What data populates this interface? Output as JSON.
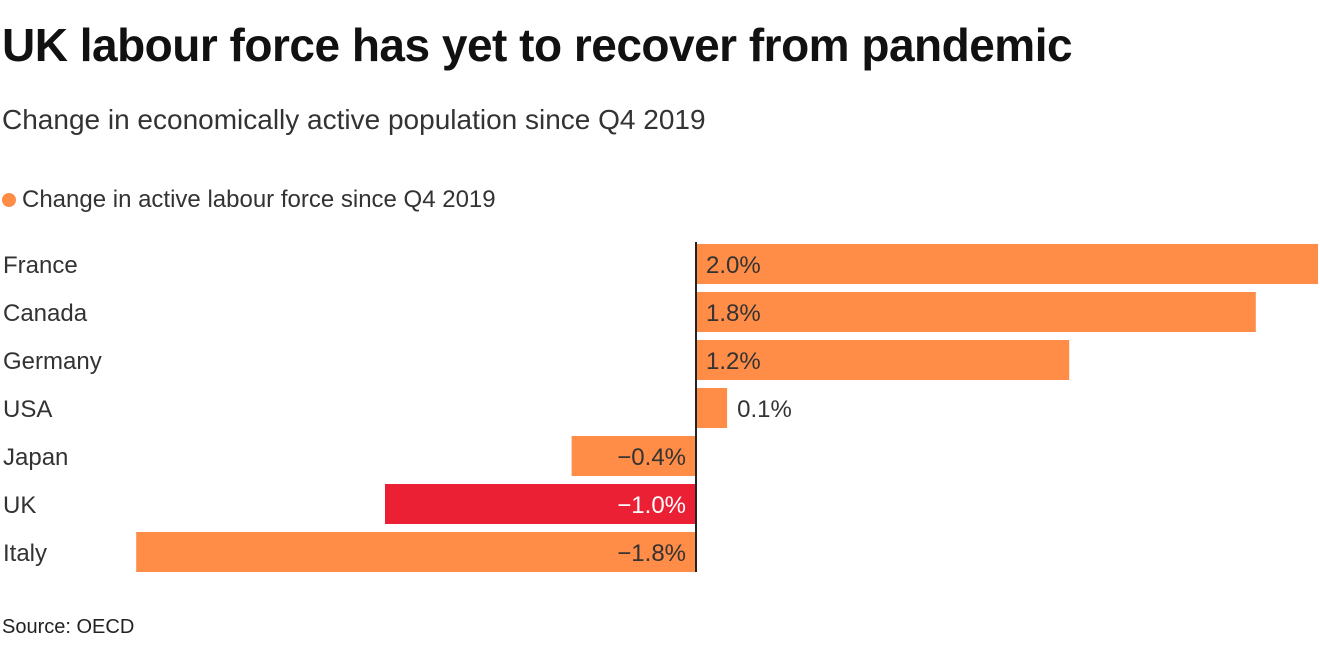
{
  "chart_data": {
    "type": "bar",
    "orientation": "horizontal",
    "title": "UK labour force has yet to recover from pandemic",
    "subtitle": "Change in economically active population since Q4 2019",
    "source": "Source: OECD",
    "categories": [
      "France",
      "Canada",
      "Germany",
      "USA",
      "Japan",
      "UK",
      "Italy"
    ],
    "series": [
      {
        "name": "Change in active labour force since Q4 2019",
        "values": [
          2.0,
          1.8,
          1.2,
          0.1,
          -0.4,
          -1.0,
          -1.8
        ]
      }
    ],
    "data_labels": [
      "2.0%",
      "1.8%",
      "1.2%",
      "0.1%",
      "−0.4%",
      "−1.0%",
      "−1.8%"
    ],
    "xlim": [
      -1.8,
      2.0
    ],
    "grid": false,
    "legend": "top-left",
    "colors": {
      "default": "#FF8C47",
      "highlight": "#EB2035",
      "highlight_category": "UK",
      "axis": "#222222"
    }
  }
}
